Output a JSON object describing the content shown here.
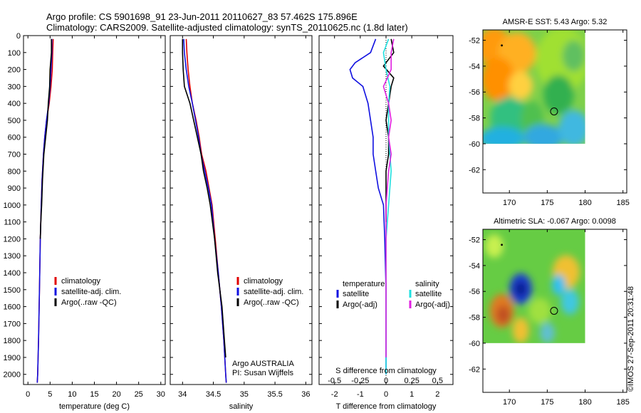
{
  "header": {
    "line1": "Argo profile: CS 5901698_91 23-Jun-2011 20110627_83 57.462S 175.896E",
    "line2": "Climatology: CARS2009. Satellite-adjusted climatology: synTS_20110625.nc (1.8d later)"
  },
  "colors": {
    "climatology": "#e00000",
    "satellite": "#1010e0",
    "argo": "#000000",
    "sal_satellite": "#20e0e0",
    "sal_argo": "#e020e0"
  },
  "chart_data": [
    {
      "type": "line",
      "panel": "temperature",
      "xlabel": "temperature (deg C)",
      "xlim": [
        -1,
        31
      ],
      "xticks": [
        0,
        5,
        10,
        15,
        20,
        25,
        30
      ],
      "ylim": [
        2060,
        0
      ],
      "yticks": [
        0,
        100,
        200,
        300,
        400,
        500,
        600,
        700,
        800,
        900,
        1000,
        1100,
        1200,
        1300,
        1400,
        1500,
        1600,
        1700,
        1800,
        1900,
        2000
      ],
      "legend": [
        "climatology",
        "satellite-adj. clim.",
        "Argo(..raw -QC)"
      ],
      "series": [
        {
          "name": "climatology",
          "color_key": "climatology",
          "points": [
            [
              5.7,
              20
            ],
            [
              5.6,
              100
            ],
            [
              5.5,
              200
            ],
            [
              5.2,
              300
            ],
            [
              4.8,
              400
            ],
            [
              4.2,
              500
            ],
            [
              3.8,
              600
            ],
            [
              3.5,
              700
            ],
            [
              3.2,
              850
            ],
            [
              3.0,
              1000
            ],
            [
              2.8,
              1200
            ],
            [
              2.6,
              1500
            ],
            [
              2.4,
              1800
            ],
            [
              2.2,
              2000
            ],
            [
              2.1,
              2050
            ]
          ]
        },
        {
          "name": "satellite-adj. clim.",
          "color_key": "satellite",
          "points": [
            [
              5.4,
              20
            ],
            [
              5.4,
              100
            ],
            [
              5.2,
              200
            ],
            [
              5.0,
              300
            ],
            [
              4.7,
              400
            ],
            [
              4.2,
              500
            ],
            [
              3.8,
              600
            ],
            [
              3.5,
              700
            ],
            [
              3.2,
              850
            ],
            [
              3.0,
              1000
            ],
            [
              2.8,
              1200
            ],
            [
              2.6,
              1500
            ],
            [
              2.4,
              1800
            ],
            [
              2.2,
              2000
            ],
            [
              2.1,
              2050
            ]
          ]
        },
        {
          "name": "Argo(..raw -QC)",
          "color_key": "argo",
          "points": [
            [
              5.3,
              20
            ],
            [
              5.3,
              100
            ],
            [
              5.0,
              200
            ],
            [
              4.9,
              300
            ],
            [
              4.6,
              400
            ],
            [
              4.4,
              500
            ],
            [
              4.0,
              600
            ],
            [
              3.6,
              700
            ],
            [
              3.3,
              850
            ],
            [
              3.1,
              1000
            ],
            [
              2.9,
              1100
            ],
            [
              2.8,
              1200
            ]
          ]
        }
      ]
    },
    {
      "type": "line",
      "panel": "salinity",
      "xlabel": "salinity",
      "xlim": [
        33.8,
        36.1
      ],
      "xticks": [
        34,
        34.5,
        35,
        35.5,
        36
      ],
      "xtick_labels": [
        "34",
        "34.5",
        "35",
        "35.5",
        "36"
      ],
      "ylim": [
        2060,
        0
      ],
      "legend": [
        "climatology",
        "satellite-adj. clim.",
        "Argo(..raw -QC)"
      ],
      "annotation": [
        "Argo AUSTRALIA",
        "PI: Susan Wijffels"
      ],
      "series": [
        {
          "name": "climatology",
          "color_key": "climatology",
          "points": [
            [
              34.06,
              20
            ],
            [
              34.07,
              100
            ],
            [
              34.09,
              200
            ],
            [
              34.12,
              300
            ],
            [
              34.16,
              400
            ],
            [
              34.22,
              500
            ],
            [
              34.27,
              600
            ],
            [
              34.31,
              700
            ],
            [
              34.38,
              800
            ],
            [
              34.43,
              900
            ],
            [
              34.48,
              1000
            ],
            [
              34.53,
              1200
            ],
            [
              34.58,
              1400
            ],
            [
              34.63,
              1600
            ],
            [
              34.67,
              1800
            ],
            [
              34.7,
              2000
            ],
            [
              34.71,
              2050
            ]
          ]
        },
        {
          "name": "satellite-adj. clim.",
          "color_key": "satellite",
          "points": [
            [
              34.02,
              20
            ],
            [
              34.03,
              100
            ],
            [
              34.06,
              200
            ],
            [
              34.1,
              300
            ],
            [
              34.16,
              400
            ],
            [
              34.21,
              500
            ],
            [
              34.26,
              600
            ],
            [
              34.3,
              700
            ],
            [
              34.36,
              800
            ],
            [
              34.42,
              900
            ],
            [
              34.47,
              1000
            ],
            [
              34.52,
              1200
            ],
            [
              34.58,
              1400
            ],
            [
              34.63,
              1600
            ],
            [
              34.67,
              1800
            ],
            [
              34.7,
              2000
            ],
            [
              34.71,
              2050
            ]
          ]
        },
        {
          "name": "Argo(..raw -QC)",
          "color_key": "argo",
          "points": [
            [
              34.0,
              20
            ],
            [
              34.0,
              100
            ],
            [
              34.01,
              200
            ],
            [
              34.03,
              300
            ],
            [
              34.12,
              400
            ],
            [
              34.18,
              500
            ],
            [
              34.24,
              600
            ],
            [
              34.3,
              700
            ],
            [
              34.34,
              800
            ],
            [
              34.4,
              900
            ],
            [
              34.45,
              1000
            ],
            [
              34.52,
              1200
            ],
            [
              34.57,
              1400
            ],
            [
              34.64,
              1600
            ],
            [
              34.68,
              1800
            ],
            [
              34.7,
              1900
            ]
          ]
        }
      ]
    },
    {
      "type": "line",
      "panel": "difference",
      "xlabel": "T difference from climatology",
      "xlabel_top": "S difference from climatology",
      "xlim": [
        -2.6,
        2.6
      ],
      "xticks": [
        -2,
        -1,
        0,
        1,
        2
      ],
      "top_tick_labels": [
        {
          "label": "-0.5",
          "at": -2.0
        },
        {
          "label": "-0.25",
          "at": -1.0
        },
        {
          "label": "0",
          "at": 0.0
        },
        {
          "label": "0.25",
          "at": 1.0
        },
        {
          "label": "0.5",
          "at": 2.0
        }
      ],
      "ylim": [
        2060,
        0
      ],
      "legend_left_title": "temperature",
      "legend_left": [
        "satellite",
        "Argo(-adj)"
      ],
      "legend_right_title": "salinity",
      "legend_right": [
        "satellite",
        "Argo(-adj)"
      ],
      "series": [
        {
          "name": "temperature satellite",
          "color_key": "satellite",
          "points": [
            [
              -0.4,
              20
            ],
            [
              -0.6,
              100
            ],
            [
              -1.2,
              160
            ],
            [
              -1.4,
              200
            ],
            [
              -1.3,
              250
            ],
            [
              -0.9,
              300
            ],
            [
              -0.7,
              400
            ],
            [
              -0.6,
              500
            ],
            [
              -0.5,
              600
            ],
            [
              -0.5,
              700
            ],
            [
              -0.4,
              800
            ],
            [
              -0.3,
              900
            ],
            [
              -0.1,
              1000
            ],
            [
              -0.05,
              1200
            ],
            [
              0.0,
              1500
            ],
            [
              0.0,
              1800
            ],
            [
              0.0,
              2000
            ]
          ]
        },
        {
          "name": "temperature Argo(-adj)",
          "color_key": "argo",
          "points": [
            [
              0.2,
              20
            ],
            [
              0.3,
              100
            ],
            [
              -0.1,
              180
            ],
            [
              0.3,
              250
            ],
            [
              0.2,
              300
            ],
            [
              0.1,
              400
            ],
            [
              0.0,
              500
            ],
            [
              0.1,
              600
            ],
            [
              0.1,
              700
            ],
            [
              0.0,
              800
            ],
            [
              0.0,
              900
            ],
            [
              0.0,
              1000
            ],
            [
              0.0,
              1100
            ]
          ]
        },
        {
          "name": "salinity satellite",
          "color_key": "sal_satellite",
          "points": [
            [
              0.1,
              20
            ],
            [
              -0.1,
              100
            ],
            [
              0.0,
              200
            ],
            [
              0.15,
              300
            ],
            [
              0.1,
              400
            ],
            [
              0.1,
              500
            ],
            [
              0.1,
              600
            ],
            [
              0.15,
              700
            ],
            [
              0.2,
              800
            ],
            [
              0.15,
              900
            ],
            [
              0.1,
              1000
            ],
            [
              0.0,
              1200
            ],
            [
              0.0,
              1600
            ],
            [
              0.0,
              2000
            ]
          ]
        },
        {
          "name": "salinity Argo(-adj)",
          "color_key": "sal_argo",
          "points": [
            [
              0.3,
              20
            ],
            [
              0.2,
              100
            ],
            [
              0.2,
              200
            ],
            [
              -0.1,
              300
            ],
            [
              0.1,
              400
            ],
            [
              0.2,
              500
            ],
            [
              0.1,
              600
            ],
            [
              0.2,
              700
            ],
            [
              0.1,
              800
            ],
            [
              0.0,
              1000
            ],
            [
              0.0,
              1200
            ],
            [
              0.0,
              1800
            ],
            [
              0.0,
              1900
            ]
          ]
        }
      ]
    },
    {
      "type": "heatmap",
      "panel": "sst-map",
      "title": "AMSR-E SST: 5.43 Argo: 5.32",
      "xlim": [
        166.5,
        185.5
      ],
      "ylim": [
        -63.8,
        -51.2
      ],
      "xticks": [
        170,
        175,
        180,
        185
      ],
      "yticks": [
        -52,
        -54,
        -56,
        -58,
        -60,
        -62
      ],
      "data_extent": {
        "lon": [
          166.5,
          180
        ],
        "lat": [
          -60,
          -51.2
        ]
      },
      "argo_position": {
        "lon": 175.9,
        "lat": -57.5
      },
      "start_position": {
        "lon": 169,
        "lat": -52.4
      },
      "blobs": [
        {
          "lon": 168,
          "lat": -52.5,
          "rx": 2.2,
          "ry": 1.5,
          "color": "#ff9a10"
        },
        {
          "lon": 171,
          "lat": -53,
          "rx": 2.5,
          "ry": 1.6,
          "color": "#ffb020"
        },
        {
          "lon": 168.5,
          "lat": -55,
          "rx": 2.2,
          "ry": 1.7,
          "color": "#ff9000"
        },
        {
          "lon": 171.5,
          "lat": -55.5,
          "rx": 1.6,
          "ry": 1.1,
          "color": "#ffd040"
        },
        {
          "lon": 177,
          "lat": -53.5,
          "rx": 3.5,
          "ry": 2.5,
          "color": "#a0e030"
        },
        {
          "lon": 178.5,
          "lat": -53.2,
          "rx": 1.5,
          "ry": 1.2,
          "color": "#60c060"
        },
        {
          "lon": 176.5,
          "lat": -56.2,
          "rx": 2.0,
          "ry": 1.5,
          "color": "#30b050"
        },
        {
          "lon": 170,
          "lat": -58,
          "rx": 2.5,
          "ry": 1.6,
          "color": "#30c080"
        },
        {
          "lon": 173,
          "lat": -58,
          "rx": 1.5,
          "ry": 1.3,
          "color": "#50c050"
        },
        {
          "lon": 169,
          "lat": -59.6,
          "rx": 3.0,
          "ry": 0.9,
          "color": "#20b0e0"
        },
        {
          "lon": 174.5,
          "lat": -59.5,
          "rx": 2.6,
          "ry": 1.0,
          "color": "#30a8e0"
        },
        {
          "lon": 178.5,
          "lat": -58.8,
          "rx": 2.0,
          "ry": 1.4,
          "color": "#40b8e0"
        }
      ]
    },
    {
      "type": "heatmap",
      "panel": "sla-map",
      "title": "Altimetric SLA: -0.067 Argo: 0.0098",
      "xlim": [
        166.5,
        185.5
      ],
      "ylim": [
        -63.8,
        -51.2
      ],
      "xticks": [
        170,
        175,
        180,
        185
      ],
      "yticks": [
        -52,
        -54,
        -56,
        -58,
        -60,
        -62
      ],
      "data_extent": {
        "lon": [
          166.5,
          180
        ],
        "lat": [
          -60,
          -51.2
        ]
      },
      "argo_position": {
        "lon": 175.9,
        "lat": -57.5
      },
      "start_position": {
        "lon": 169,
        "lat": -52.4
      },
      "blobs": [
        {
          "lon": 171.5,
          "lat": -55.8,
          "rx": 1.5,
          "ry": 1.2,
          "color": "#1a3fd0"
        },
        {
          "lon": 171.5,
          "lat": -55.8,
          "rx": 0.8,
          "ry": 0.6,
          "color": "#0a1a90"
        },
        {
          "lon": 169,
          "lat": -57.5,
          "rx": 1.6,
          "ry": 1.3,
          "color": "#e07a20"
        },
        {
          "lon": 169.2,
          "lat": -57.8,
          "rx": 0.9,
          "ry": 0.7,
          "color": "#c05020"
        },
        {
          "lon": 171.5,
          "lat": -59,
          "rx": 1.1,
          "ry": 1.0,
          "color": "#f0c030"
        },
        {
          "lon": 177.5,
          "lat": -54.5,
          "rx": 1.8,
          "ry": 1.3,
          "color": "#f0c030"
        },
        {
          "lon": 176.5,
          "lat": -55.5,
          "rx": 0.9,
          "ry": 0.8,
          "color": "#30c0f0"
        },
        {
          "lon": 178,
          "lat": -56.8,
          "rx": 1.2,
          "ry": 1.0,
          "color": "#40c8e0"
        },
        {
          "lon": 174,
          "lat": -57.5,
          "rx": 1.5,
          "ry": 1.0,
          "color": "#a0e040"
        },
        {
          "lon": 175,
          "lat": -59.2,
          "rx": 1.0,
          "ry": 0.8,
          "color": "#60c0d0"
        },
        {
          "lon": 168,
          "lat": -52.5,
          "rx": 1.2,
          "ry": 0.9,
          "color": "#c8f050"
        }
      ]
    }
  ],
  "footer": {
    "credit": "©IMOS 27-Sep-2011 20:31:48"
  }
}
